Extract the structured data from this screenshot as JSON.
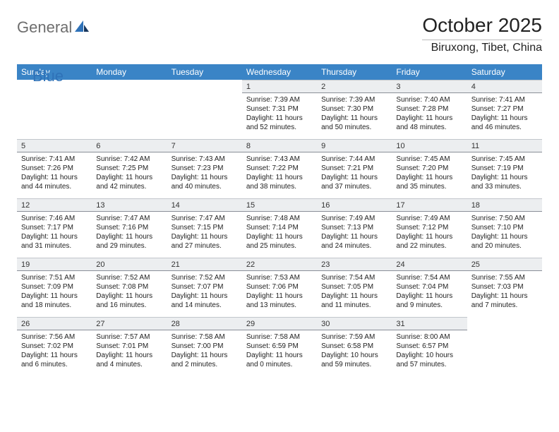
{
  "brand": {
    "part1": "General",
    "part2": "Blue"
  },
  "title": "October 2025",
  "location": "Biruxong, Tibet, China",
  "colors": {
    "header_bg": "#3a84c6",
    "header_text": "#ffffff",
    "daynum_bg": "#eceef0",
    "rule": "#8a8f98",
    "body_text": "#222222",
    "logo_gray": "#6e6e6e",
    "logo_blue": "#2f72b8"
  },
  "fonts": {
    "title_size_pt": 21,
    "location_size_pt": 12,
    "dayhead_size_pt": 9,
    "daynum_size_pt": 8,
    "body_size_pt": 7.5
  },
  "weekdays": [
    "Sunday",
    "Monday",
    "Tuesday",
    "Wednesday",
    "Thursday",
    "Friday",
    "Saturday"
  ],
  "weeks": [
    [
      {
        "n": "",
        "sr": "",
        "ss": "",
        "dl": ""
      },
      {
        "n": "",
        "sr": "",
        "ss": "",
        "dl": ""
      },
      {
        "n": "",
        "sr": "",
        "ss": "",
        "dl": ""
      },
      {
        "n": "1",
        "sr": "Sunrise: 7:39 AM",
        "ss": "Sunset: 7:31 PM",
        "dl": "Daylight: 11 hours and 52 minutes."
      },
      {
        "n": "2",
        "sr": "Sunrise: 7:39 AM",
        "ss": "Sunset: 7:30 PM",
        "dl": "Daylight: 11 hours and 50 minutes."
      },
      {
        "n": "3",
        "sr": "Sunrise: 7:40 AM",
        "ss": "Sunset: 7:28 PM",
        "dl": "Daylight: 11 hours and 48 minutes."
      },
      {
        "n": "4",
        "sr": "Sunrise: 7:41 AM",
        "ss": "Sunset: 7:27 PM",
        "dl": "Daylight: 11 hours and 46 minutes."
      }
    ],
    [
      {
        "n": "5",
        "sr": "Sunrise: 7:41 AM",
        "ss": "Sunset: 7:26 PM",
        "dl": "Daylight: 11 hours and 44 minutes."
      },
      {
        "n": "6",
        "sr": "Sunrise: 7:42 AM",
        "ss": "Sunset: 7:25 PM",
        "dl": "Daylight: 11 hours and 42 minutes."
      },
      {
        "n": "7",
        "sr": "Sunrise: 7:43 AM",
        "ss": "Sunset: 7:23 PM",
        "dl": "Daylight: 11 hours and 40 minutes."
      },
      {
        "n": "8",
        "sr": "Sunrise: 7:43 AM",
        "ss": "Sunset: 7:22 PM",
        "dl": "Daylight: 11 hours and 38 minutes."
      },
      {
        "n": "9",
        "sr": "Sunrise: 7:44 AM",
        "ss": "Sunset: 7:21 PM",
        "dl": "Daylight: 11 hours and 37 minutes."
      },
      {
        "n": "10",
        "sr": "Sunrise: 7:45 AM",
        "ss": "Sunset: 7:20 PM",
        "dl": "Daylight: 11 hours and 35 minutes."
      },
      {
        "n": "11",
        "sr": "Sunrise: 7:45 AM",
        "ss": "Sunset: 7:19 PM",
        "dl": "Daylight: 11 hours and 33 minutes."
      }
    ],
    [
      {
        "n": "12",
        "sr": "Sunrise: 7:46 AM",
        "ss": "Sunset: 7:17 PM",
        "dl": "Daylight: 11 hours and 31 minutes."
      },
      {
        "n": "13",
        "sr": "Sunrise: 7:47 AM",
        "ss": "Sunset: 7:16 PM",
        "dl": "Daylight: 11 hours and 29 minutes."
      },
      {
        "n": "14",
        "sr": "Sunrise: 7:47 AM",
        "ss": "Sunset: 7:15 PM",
        "dl": "Daylight: 11 hours and 27 minutes."
      },
      {
        "n": "15",
        "sr": "Sunrise: 7:48 AM",
        "ss": "Sunset: 7:14 PM",
        "dl": "Daylight: 11 hours and 25 minutes."
      },
      {
        "n": "16",
        "sr": "Sunrise: 7:49 AM",
        "ss": "Sunset: 7:13 PM",
        "dl": "Daylight: 11 hours and 24 minutes."
      },
      {
        "n": "17",
        "sr": "Sunrise: 7:49 AM",
        "ss": "Sunset: 7:12 PM",
        "dl": "Daylight: 11 hours and 22 minutes."
      },
      {
        "n": "18",
        "sr": "Sunrise: 7:50 AM",
        "ss": "Sunset: 7:10 PM",
        "dl": "Daylight: 11 hours and 20 minutes."
      }
    ],
    [
      {
        "n": "19",
        "sr": "Sunrise: 7:51 AM",
        "ss": "Sunset: 7:09 PM",
        "dl": "Daylight: 11 hours and 18 minutes."
      },
      {
        "n": "20",
        "sr": "Sunrise: 7:52 AM",
        "ss": "Sunset: 7:08 PM",
        "dl": "Daylight: 11 hours and 16 minutes."
      },
      {
        "n": "21",
        "sr": "Sunrise: 7:52 AM",
        "ss": "Sunset: 7:07 PM",
        "dl": "Daylight: 11 hours and 14 minutes."
      },
      {
        "n": "22",
        "sr": "Sunrise: 7:53 AM",
        "ss": "Sunset: 7:06 PM",
        "dl": "Daylight: 11 hours and 13 minutes."
      },
      {
        "n": "23",
        "sr": "Sunrise: 7:54 AM",
        "ss": "Sunset: 7:05 PM",
        "dl": "Daylight: 11 hours and 11 minutes."
      },
      {
        "n": "24",
        "sr": "Sunrise: 7:54 AM",
        "ss": "Sunset: 7:04 PM",
        "dl": "Daylight: 11 hours and 9 minutes."
      },
      {
        "n": "25",
        "sr": "Sunrise: 7:55 AM",
        "ss": "Sunset: 7:03 PM",
        "dl": "Daylight: 11 hours and 7 minutes."
      }
    ],
    [
      {
        "n": "26",
        "sr": "Sunrise: 7:56 AM",
        "ss": "Sunset: 7:02 PM",
        "dl": "Daylight: 11 hours and 6 minutes."
      },
      {
        "n": "27",
        "sr": "Sunrise: 7:57 AM",
        "ss": "Sunset: 7:01 PM",
        "dl": "Daylight: 11 hours and 4 minutes."
      },
      {
        "n": "28",
        "sr": "Sunrise: 7:58 AM",
        "ss": "Sunset: 7:00 PM",
        "dl": "Daylight: 11 hours and 2 minutes."
      },
      {
        "n": "29",
        "sr": "Sunrise: 7:58 AM",
        "ss": "Sunset: 6:59 PM",
        "dl": "Daylight: 11 hours and 0 minutes."
      },
      {
        "n": "30",
        "sr": "Sunrise: 7:59 AM",
        "ss": "Sunset: 6:58 PM",
        "dl": "Daylight: 10 hours and 59 minutes."
      },
      {
        "n": "31",
        "sr": "Sunrise: 8:00 AM",
        "ss": "Sunset: 6:57 PM",
        "dl": "Daylight: 10 hours and 57 minutes."
      },
      {
        "n": "",
        "sr": "",
        "ss": "",
        "dl": ""
      }
    ]
  ]
}
